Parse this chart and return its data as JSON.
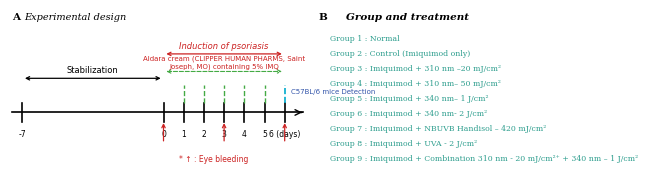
{
  "title_A": "Experimental design",
  "title_B": "Group and treatment",
  "section_A": "A",
  "section_B": "B",
  "timeline_days": [
    -7,
    0,
    1,
    2,
    3,
    4,
    5,
    6
  ],
  "stabilization_label": "Stabilization",
  "induction_label": "Induction of psoriasis",
  "aldara_label": "Aldara cream (CLIPPER HUMAN PHARMS, Saint\nJoseph, MO) containing 5% IMQ",
  "detection_label": "C57BL/6 mice Detection",
  "eye_bleeding_label": "* ↑ : Eye bleeding",
  "eye_bleeding_days": [
    0,
    3,
    6
  ],
  "green_tick_days": [
    1,
    2,
    3,
    4,
    5
  ],
  "groups": [
    "Group 1 : Normal",
    "Group 2 : Control (Imiquimod only)",
    "Group 3 : Imiquimod + 310 nm –20 mJ/cm²",
    "Group 4 : Imiquimod + 310 nm– 50 mJ/cm²",
    "Group 5 : Imiquimod + 340 nm– 1 J/cm²",
    "Group 6 : Imiquimod + 340 nm- 2 J/cm²",
    "Group 7 : Imiquimod + NBUVB Handisol – 420 mJ/cm²",
    "Group 8 : Imiquimod + UVA - 2 J/cm²",
    "Group 9 : Imiquimod + Combination 310 nm - 20 mJ/cm²⁺ + 340 nm – 1 J/cm²"
  ],
  "bg_color": "#ffffff",
  "red_color": "#cc2222",
  "green_color": "#44aa44",
  "blue_color": "#3355aa",
  "teal_color": "#2e9e8e",
  "cyan_color": "#00aacc"
}
